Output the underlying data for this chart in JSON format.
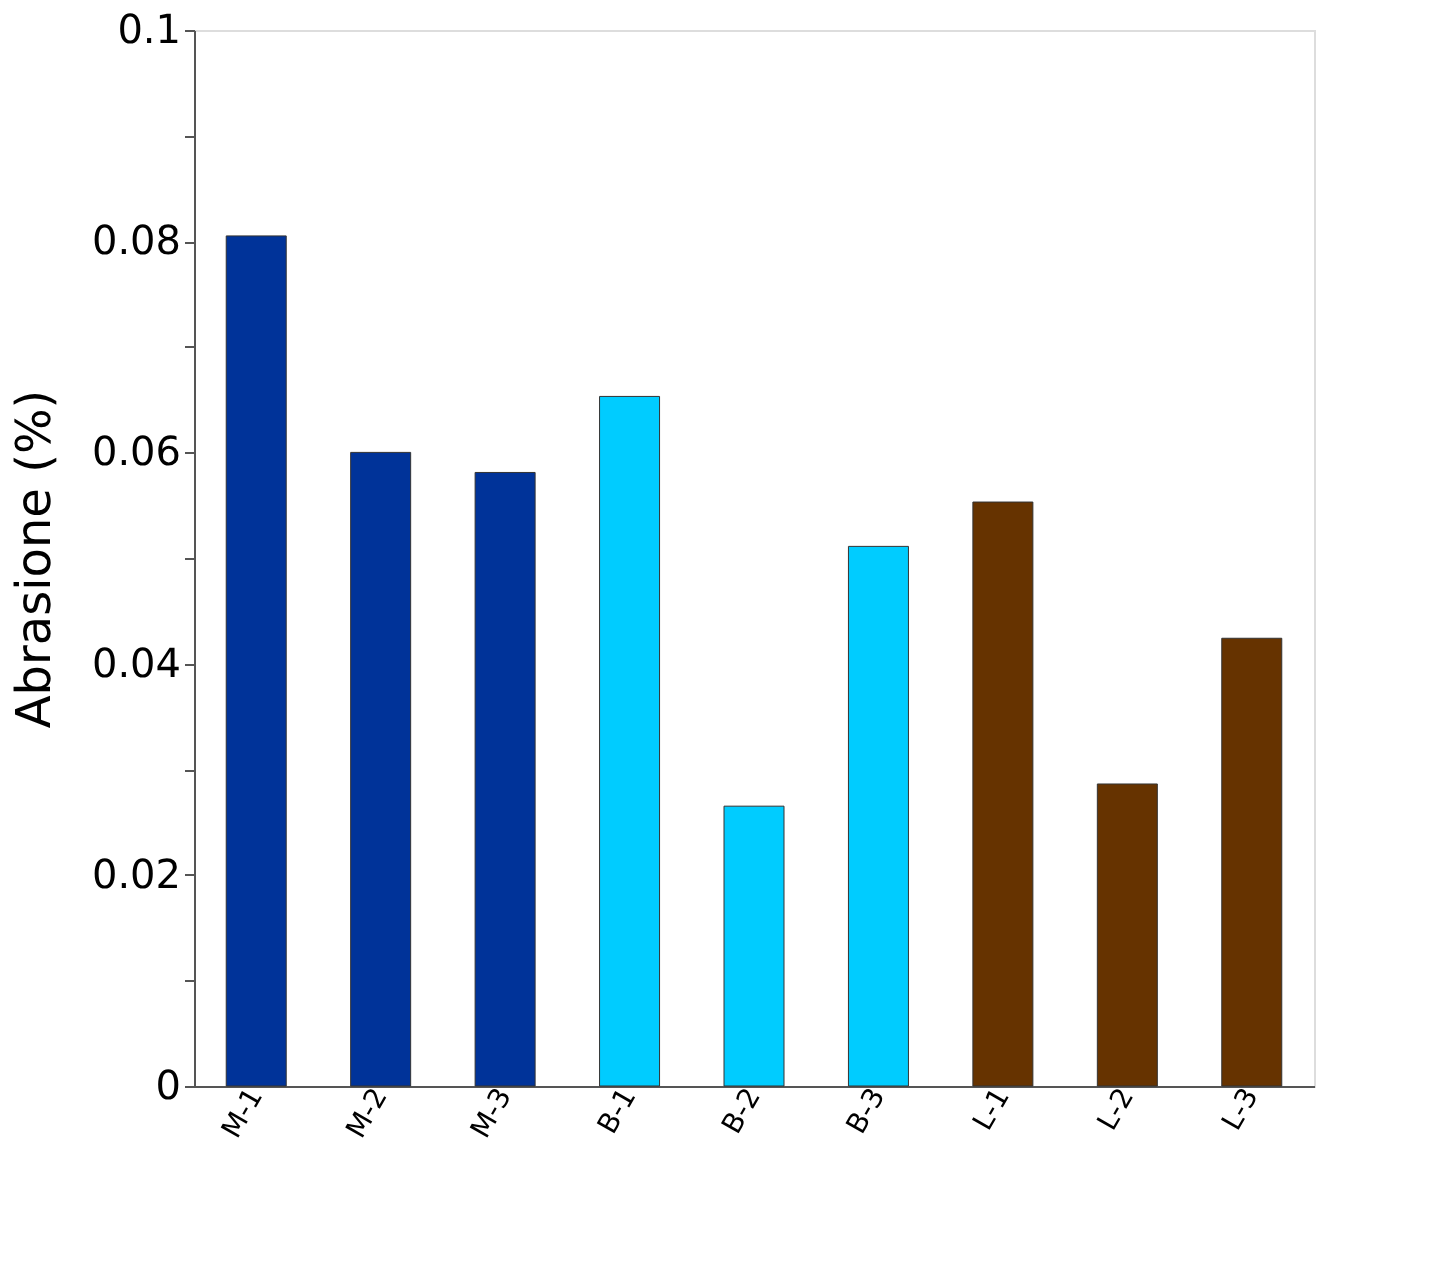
{
  "chart_data": {
    "type": "bar",
    "ylabel": "Abrasione (%)",
    "categories": [
      "M-1",
      "M-2",
      "M-3",
      "B-1",
      "B-2",
      "B-3",
      "L-1",
      "L-2",
      "L-3"
    ],
    "values": [
      0.0805,
      0.06,
      0.0581,
      0.0653,
      0.0265,
      0.0511,
      0.0553,
      0.0286,
      0.0424
    ],
    "colors": [
      "#003399",
      "#003399",
      "#003399",
      "#00ccff",
      "#00ccff",
      "#00ccff",
      "#663300",
      "#663300",
      "#663300"
    ],
    "ylim": [
      0,
      0.1
    ],
    "yticks": [
      0,
      {
        "value": 0.01,
        "label": null
      },
      0.02,
      {
        "value": 0.03,
        "label": null
      },
      0.04,
      {
        "value": 0.05,
        "label": null
      },
      0.06,
      {
        "value": 0.07,
        "label": null
      },
      0.08,
      {
        "value": 0.09,
        "label": null
      },
      0.1
    ],
    "grid": false
  }
}
